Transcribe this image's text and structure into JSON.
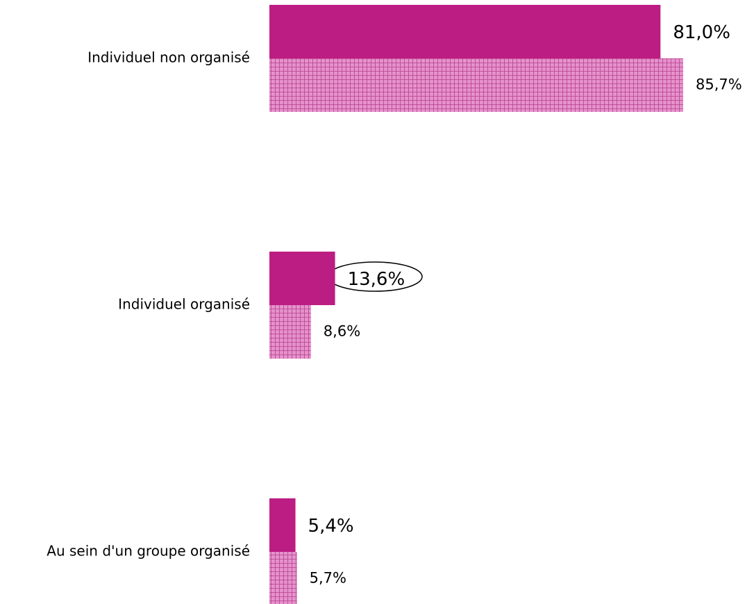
{
  "chart_data": {
    "type": "bar",
    "orientation": "horizontal",
    "categories": [
      "Individuel non organisé",
      "Individuel organisé",
      "Au sein d'un groupe organisé"
    ],
    "series": [
      {
        "color": "#bc1d82",
        "values": [
          81.0,
          13.6,
          5.4
        ],
        "value_labels": [
          "81,0%",
          "13,6%",
          "5,4%"
        ]
      },
      {
        "color": "#e592cb",
        "values": [
          85.7,
          8.6,
          5.7
        ],
        "value_labels": [
          "85,7%",
          "8,6%",
          "5,7%"
        ]
      }
    ]
  }
}
